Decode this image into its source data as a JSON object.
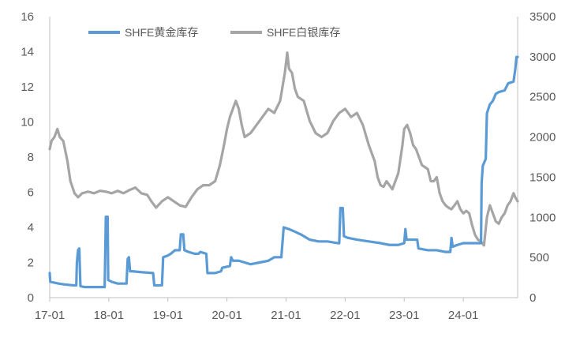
{
  "chart_data": {
    "type": "line",
    "title": "",
    "xlabel": "",
    "ylabel": "",
    "y2label": "",
    "x_ticks": [
      "17-01",
      "18-01",
      "19-01",
      "20-01",
      "21-01",
      "22-01",
      "23-01",
      "24-01"
    ],
    "x_range": [
      2017.0,
      2024.92
    ],
    "ylim": [
      0,
      16
    ],
    "y_ticks": [
      0,
      2,
      4,
      6,
      8,
      10,
      12,
      14,
      16
    ],
    "y2lim": [
      0,
      3500
    ],
    "y2_ticks": [
      0,
      500,
      1000,
      1500,
      2000,
      2500,
      3000,
      3500
    ],
    "grid": false,
    "legend_placement": "top-left",
    "series": [
      {
        "name": "SHFE黄金库存",
        "axis": "left",
        "color": "#5B9BD5",
        "points": [
          [
            2017.0,
            1.4
          ],
          [
            2017.01,
            0.9
          ],
          [
            2017.08,
            0.85
          ],
          [
            2017.15,
            0.8
          ],
          [
            2017.25,
            0.75
          ],
          [
            2017.4,
            0.7
          ],
          [
            2017.45,
            0.7
          ],
          [
            2017.46,
            2.0
          ],
          [
            2017.48,
            2.7
          ],
          [
            2017.5,
            2.8
          ],
          [
            2017.52,
            0.65
          ],
          [
            2017.6,
            0.6
          ],
          [
            2017.8,
            0.6
          ],
          [
            2017.93,
            0.6
          ],
          [
            2017.94,
            2.5
          ],
          [
            2017.95,
            4.6
          ],
          [
            2017.98,
            4.6
          ],
          [
            2017.99,
            1.0
          ],
          [
            2018.05,
            0.9
          ],
          [
            2018.15,
            0.8
          ],
          [
            2018.3,
            0.8
          ],
          [
            2018.32,
            2.2
          ],
          [
            2018.34,
            2.3
          ],
          [
            2018.36,
            1.5
          ],
          [
            2018.4,
            1.5
          ],
          [
            2018.55,
            1.45
          ],
          [
            2018.75,
            1.4
          ],
          [
            2018.77,
            0.7
          ],
          [
            2018.9,
            0.7
          ],
          [
            2018.92,
            2.3
          ],
          [
            2019.0,
            2.4
          ],
          [
            2019.05,
            2.5
          ],
          [
            2019.12,
            2.7
          ],
          [
            2019.2,
            2.7
          ],
          [
            2019.22,
            3.6
          ],
          [
            2019.26,
            3.6
          ],
          [
            2019.28,
            2.7
          ],
          [
            2019.35,
            2.6
          ],
          [
            2019.45,
            2.5
          ],
          [
            2019.52,
            2.5
          ],
          [
            2019.55,
            2.6
          ],
          [
            2019.65,
            2.5
          ],
          [
            2019.67,
            1.4
          ],
          [
            2019.8,
            1.4
          ],
          [
            2019.9,
            1.5
          ],
          [
            2019.92,
            1.7
          ],
          [
            2020.05,
            1.8
          ],
          [
            2020.07,
            2.3
          ],
          [
            2020.1,
            2.1
          ],
          [
            2020.2,
            2.1
          ],
          [
            2020.3,
            2.0
          ],
          [
            2020.4,
            1.9
          ],
          [
            2020.55,
            2.0
          ],
          [
            2020.7,
            2.1
          ],
          [
            2020.8,
            2.3
          ],
          [
            2020.92,
            2.3
          ],
          [
            2020.96,
            4.0
          ],
          [
            2021.05,
            3.9
          ],
          [
            2021.12,
            3.8
          ],
          [
            2021.25,
            3.6
          ],
          [
            2021.4,
            3.3
          ],
          [
            2021.55,
            3.2
          ],
          [
            2021.7,
            3.2
          ],
          [
            2021.88,
            3.1
          ],
          [
            2021.9,
            3.1
          ],
          [
            2021.92,
            5.1
          ],
          [
            2021.96,
            5.1
          ],
          [
            2021.98,
            3.5
          ],
          [
            2022.05,
            3.4
          ],
          [
            2022.2,
            3.3
          ],
          [
            2022.4,
            3.2
          ],
          [
            2022.6,
            3.1
          ],
          [
            2022.75,
            3.0
          ],
          [
            2022.9,
            3.0
          ],
          [
            2023.0,
            3.1
          ],
          [
            2023.02,
            3.9
          ],
          [
            2023.04,
            3.3
          ],
          [
            2023.1,
            3.3
          ],
          [
            2023.22,
            3.3
          ],
          [
            2023.24,
            2.8
          ],
          [
            2023.4,
            2.7
          ],
          [
            2023.55,
            2.7
          ],
          [
            2023.7,
            2.6
          ],
          [
            2023.78,
            2.6
          ],
          [
            2023.8,
            3.4
          ],
          [
            2023.82,
            2.9
          ],
          [
            2023.9,
            3.0
          ],
          [
            2024.0,
            3.1
          ],
          [
            2024.1,
            3.1
          ],
          [
            2024.2,
            3.1
          ],
          [
            2024.3,
            3.1
          ],
          [
            2024.31,
            6.5
          ],
          [
            2024.33,
            7.5
          ],
          [
            2024.38,
            7.9
          ],
          [
            2024.4,
            10.5
          ],
          [
            2024.45,
            11.0
          ],
          [
            2024.5,
            11.2
          ],
          [
            2024.55,
            11.6
          ],
          [
            2024.6,
            11.7
          ],
          [
            2024.7,
            11.8
          ],
          [
            2024.76,
            12.2
          ],
          [
            2024.85,
            12.3
          ],
          [
            2024.88,
            13.0
          ],
          [
            2024.9,
            13.7
          ],
          [
            2024.92,
            13.7
          ]
        ]
      },
      {
        "name": "SHFE白银库存",
        "axis": "right",
        "color": "#A5A5A5",
        "points": [
          [
            2017.0,
            1850
          ],
          [
            2017.03,
            1950
          ],
          [
            2017.08,
            2000
          ],
          [
            2017.13,
            2100
          ],
          [
            2017.17,
            2000
          ],
          [
            2017.23,
            1950
          ],
          [
            2017.3,
            1700
          ],
          [
            2017.35,
            1450
          ],
          [
            2017.42,
            1300
          ],
          [
            2017.48,
            1250
          ],
          [
            2017.55,
            1300
          ],
          [
            2017.65,
            1320
          ],
          [
            2017.75,
            1300
          ],
          [
            2017.85,
            1330
          ],
          [
            2017.95,
            1320
          ],
          [
            2018.05,
            1300
          ],
          [
            2018.15,
            1330
          ],
          [
            2018.25,
            1300
          ],
          [
            2018.35,
            1340
          ],
          [
            2018.45,
            1370
          ],
          [
            2018.55,
            1300
          ],
          [
            2018.65,
            1280
          ],
          [
            2018.72,
            1200
          ],
          [
            2018.8,
            1120
          ],
          [
            2018.9,
            1200
          ],
          [
            2019.0,
            1250
          ],
          [
            2019.1,
            1200
          ],
          [
            2019.2,
            1150
          ],
          [
            2019.3,
            1130
          ],
          [
            2019.4,
            1250
          ],
          [
            2019.5,
            1350
          ],
          [
            2019.6,
            1400
          ],
          [
            2019.7,
            1400
          ],
          [
            2019.8,
            1450
          ],
          [
            2019.88,
            1650
          ],
          [
            2019.95,
            1900
          ],
          [
            2020.0,
            2100
          ],
          [
            2020.05,
            2250
          ],
          [
            2020.1,
            2350
          ],
          [
            2020.15,
            2450
          ],
          [
            2020.2,
            2350
          ],
          [
            2020.25,
            2150
          ],
          [
            2020.3,
            2000
          ],
          [
            2020.4,
            2050
          ],
          [
            2020.5,
            2150
          ],
          [
            2020.6,
            2250
          ],
          [
            2020.7,
            2350
          ],
          [
            2020.8,
            2300
          ],
          [
            2020.9,
            2450
          ],
          [
            2020.98,
            2800
          ],
          [
            2021.02,
            3050
          ],
          [
            2021.05,
            2850
          ],
          [
            2021.1,
            2800
          ],
          [
            2021.15,
            2600
          ],
          [
            2021.2,
            2500
          ],
          [
            2021.3,
            2450
          ],
          [
            2021.4,
            2200
          ],
          [
            2021.5,
            2050
          ],
          [
            2021.6,
            2000
          ],
          [
            2021.7,
            2050
          ],
          [
            2021.8,
            2200
          ],
          [
            2021.9,
            2300
          ],
          [
            2022.0,
            2350
          ],
          [
            2022.1,
            2250
          ],
          [
            2022.2,
            2300
          ],
          [
            2022.3,
            2150
          ],
          [
            2022.4,
            1900
          ],
          [
            2022.5,
            1700
          ],
          [
            2022.55,
            1500
          ],
          [
            2022.6,
            1400
          ],
          [
            2022.65,
            1380
          ],
          [
            2022.7,
            1450
          ],
          [
            2022.8,
            1350
          ],
          [
            2022.9,
            1550
          ],
          [
            2022.97,
            1900
          ],
          [
            2023.0,
            2100
          ],
          [
            2023.05,
            2150
          ],
          [
            2023.1,
            2050
          ],
          [
            2023.15,
            1900
          ],
          [
            2023.2,
            1850
          ],
          [
            2023.25,
            1750
          ],
          [
            2023.3,
            1650
          ],
          [
            2023.4,
            1600
          ],
          [
            2023.45,
            1450
          ],
          [
            2023.5,
            1450
          ],
          [
            2023.55,
            1500
          ],
          [
            2023.6,
            1300
          ],
          [
            2023.65,
            1200
          ],
          [
            2023.7,
            1150
          ],
          [
            2023.75,
            1120
          ],
          [
            2023.8,
            1100
          ],
          [
            2023.85,
            1150
          ],
          [
            2023.9,
            1200
          ],
          [
            2023.95,
            1100
          ],
          [
            2024.0,
            1050
          ],
          [
            2024.05,
            1080
          ],
          [
            2024.1,
            1050
          ],
          [
            2024.15,
            900
          ],
          [
            2024.2,
            780
          ],
          [
            2024.25,
            720
          ],
          [
            2024.3,
            700
          ],
          [
            2024.35,
            650
          ],
          [
            2024.4,
            1000
          ],
          [
            2024.45,
            1150
          ],
          [
            2024.5,
            1050
          ],
          [
            2024.55,
            950
          ],
          [
            2024.6,
            920
          ],
          [
            2024.65,
            1000
          ],
          [
            2024.7,
            1050
          ],
          [
            2024.75,
            1150
          ],
          [
            2024.8,
            1200
          ],
          [
            2024.85,
            1300
          ],
          [
            2024.88,
            1250
          ],
          [
            2024.92,
            1200
          ]
        ]
      }
    ]
  }
}
